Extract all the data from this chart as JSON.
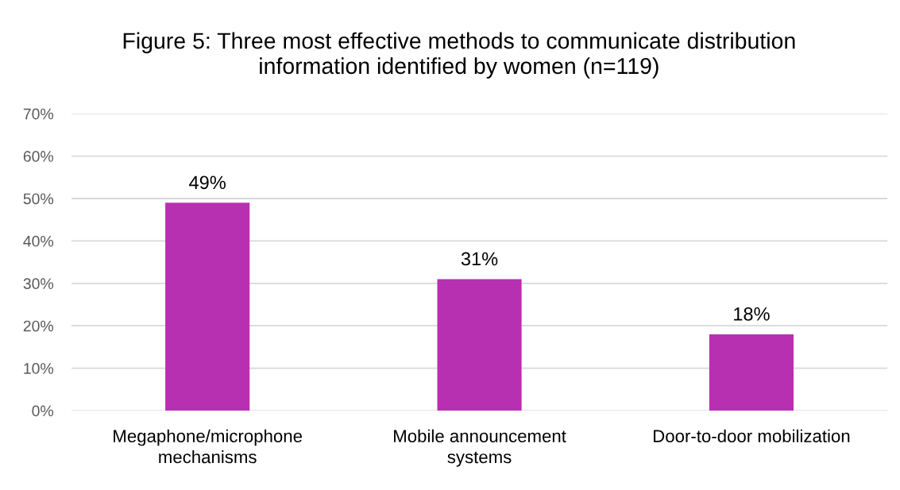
{
  "chart_data": {
    "type": "bar",
    "title": "Figure 5: Three most effective methods to communicate distribution\ninformation identified by women (n=119)",
    "categories": [
      "Megaphone/microphone\nmechanisms",
      "Mobile announcement\nsystems",
      "Door-to-door mobilization"
    ],
    "values": [
      49,
      31,
      18
    ],
    "color": "#b830b2",
    "value_labels": [
      "49%",
      "31%",
      "18%"
    ],
    "ylim": [
      0,
      70
    ],
    "yticks": [
      {
        "value": 0,
        "label": "0%"
      },
      {
        "value": 10,
        "label": "10%"
      },
      {
        "value": 20,
        "label": "20%"
      },
      {
        "value": 30,
        "label": "30%"
      },
      {
        "value": 40,
        "label": "40%"
      },
      {
        "value": 50,
        "label": "50%"
      },
      {
        "value": 60,
        "label": "60%"
      },
      {
        "value": 70,
        "label": "70%"
      }
    ],
    "grid": "y"
  }
}
